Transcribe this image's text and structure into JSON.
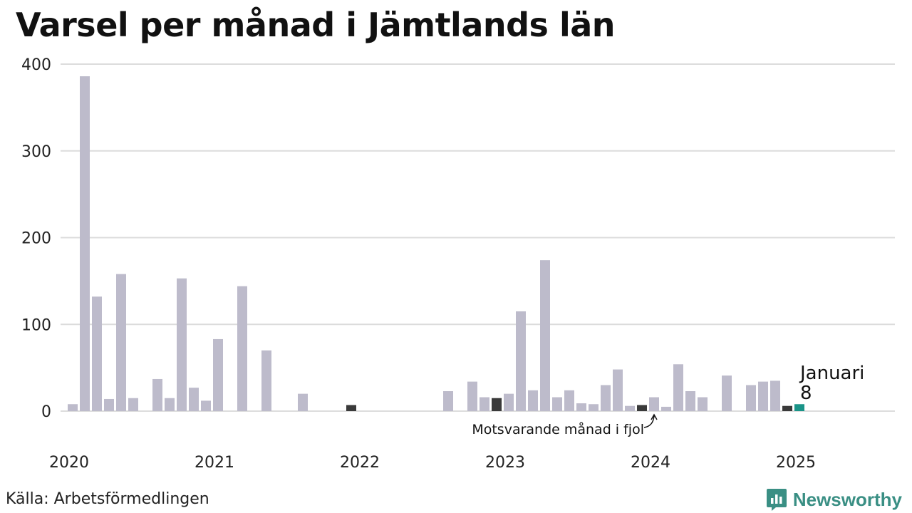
{
  "title": "Varsel per månad i Jämtlands län",
  "source": "Källa: Arbetsförmedlingen",
  "brand": "Newsworthy",
  "colors": {
    "bar": "#bdbbcb",
    "previous_year": "#3a3a3a",
    "current": "#1a9488",
    "grid": "#dcdcdc",
    "brand": "#3a8f84"
  },
  "chart_data": {
    "type": "bar",
    "title": "Varsel per månad i Jämtlands län",
    "xlabel": "",
    "ylabel": "",
    "ylim": [
      0,
      400
    ],
    "y_ticks": [
      0,
      100,
      200,
      300,
      400
    ],
    "x_ticks": [
      "2020",
      "2021",
      "2022",
      "2023",
      "2024",
      "2025"
    ],
    "grid": true,
    "start_month": "2020-01",
    "series": [
      {
        "values": [
          8,
          386,
          132,
          14,
          158,
          15,
          0,
          37,
          15,
          153,
          27,
          12,
          83,
          0,
          144,
          0,
          70,
          0,
          0,
          20,
          0,
          0,
          0,
          7,
          0,
          0,
          0,
          0,
          0,
          0,
          0,
          23,
          0,
          34,
          16,
          15,
          20,
          115,
          24,
          174,
          16,
          24,
          9,
          8,
          30,
          48,
          6,
          7,
          16,
          5,
          54,
          23,
          16,
          0,
          41,
          0,
          30,
          34,
          35,
          6,
          8
        ]
      }
    ],
    "highlight_dark": [
      "2021-12",
      "2022-12",
      "2023-12",
      "2024-12"
    ],
    "highlight_current": "2025-01",
    "annotations": {
      "current_month": "Januari",
      "current_value": "8",
      "previous_year": "Motsvarande månad i fjol"
    }
  }
}
